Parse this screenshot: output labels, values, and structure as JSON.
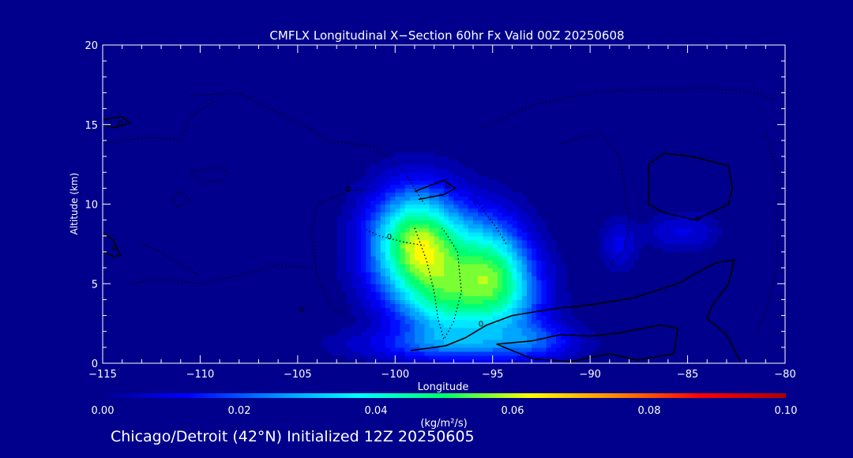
{
  "chart_data": {
    "type": "heatmap",
    "title": "CMFLX Longitudinal X−Section 60hr  Fx Valid 00Z 20250608",
    "xlabel": "Longitude",
    "ylabel": "Altitude (km)",
    "xlim": [
      -115,
      -80
    ],
    "ylim": [
      0,
      20
    ],
    "x_ticks": [
      -115,
      -110,
      -105,
      -100,
      -95,
      -90,
      -85,
      -80
    ],
    "x_tick_labels": [
      "−115",
      "−110",
      "−105",
      "−100",
      "−95",
      "−90",
      "−85",
      "−80"
    ],
    "y_ticks": [
      0,
      5,
      10,
      15,
      20
    ],
    "y_tick_labels": [
      "0",
      "5",
      "10",
      "15",
      "20"
    ],
    "grid": false,
    "colorbar": {
      "min": 0.0,
      "max": 0.1,
      "ticks": [
        0.0,
        0.02,
        0.04,
        0.06,
        0.08,
        0.1
      ],
      "tick_labels": [
        "0.00",
        "0.02",
        "0.04",
        "0.06",
        "0.08",
        "0.10"
      ],
      "unit_label": "(kg/m²/s)",
      "colors": [
        "#00008c",
        "#0000ff",
        "#0088ff",
        "#00ffff",
        "#00ff66",
        "#ffff00",
        "#ff8800",
        "#ff0000",
        "#aa0000"
      ]
    },
    "flux_cells": [
      {
        "lon": -99,
        "alt": 8.0,
        "value": 0.04,
        "sx": 1.6,
        "sy": 2.2
      },
      {
        "lon": -98,
        "alt": 6.0,
        "value": 0.03,
        "sx": 2.0,
        "sy": 2.4
      },
      {
        "lon": -97.2,
        "alt": 3.5,
        "value": 0.022,
        "sx": 1.6,
        "sy": 1.6
      },
      {
        "lon": -95,
        "alt": 6.0,
        "value": 0.032,
        "sx": 1.3,
        "sy": 2.2
      },
      {
        "lon": -94,
        "alt": 4.0,
        "value": 0.018,
        "sx": 1.4,
        "sy": 2.0
      },
      {
        "lon": -97,
        "alt": 1.2,
        "value": 0.016,
        "sx": 3.5,
        "sy": 0.7
      },
      {
        "lon": -92.5,
        "alt": 1.5,
        "value": 0.01,
        "sx": 1.3,
        "sy": 0.8
      },
      {
        "lon": -88.5,
        "alt": 7.5,
        "value": 0.01,
        "sx": 0.6,
        "sy": 1.1
      },
      {
        "lon": -86,
        "alt": 8.3,
        "value": 0.007,
        "sx": 0.8,
        "sy": 0.8
      },
      {
        "lon": -84.5,
        "alt": 8.3,
        "value": 0.007,
        "sx": 0.8,
        "sy": 0.8
      }
    ],
    "contours": [
      {
        "label": "0",
        "style": "solid",
        "lon": [
          -115,
          -114.0,
          -113.6,
          -114.4,
          -115
        ],
        "alt": [
          15.3,
          15.5,
          15.1,
          14.8,
          15.0
        ]
      },
      {
        "label": "0",
        "style": "solid",
        "lon": [
          -115,
          -114.5,
          -114.1,
          -114.4,
          -115
        ],
        "alt": [
          8.2,
          7.8,
          6.8,
          6.7,
          7.0
        ]
      },
      {
        "label": "0",
        "style": "solid",
        "lon": [
          -99.0,
          -97.5,
          -96.9,
          -97.5,
          -98.8
        ],
        "alt": [
          10.8,
          11.5,
          11.0,
          10.6,
          10.3
        ]
      },
      {
        "label": "0",
        "style": "solid",
        "lon": [
          -86.2,
          -84.8,
          -83.8,
          -82.9,
          -82.7,
          -82.9,
          -84.6,
          -86.3,
          -87.0,
          -87.0,
          -86.2
        ],
        "alt": [
          13.2,
          13.0,
          12.7,
          12.4,
          11.0,
          10.0,
          9.0,
          9.5,
          10.0,
          12.5,
          13.2
        ]
      },
      {
        "label": "0",
        "style": "solid",
        "lon": [
          -99.2,
          -97.4,
          -96.4,
          -95.3,
          -94.0,
          -92.0,
          -89.8,
          -87.8,
          -85.5,
          -83.6,
          -82.6,
          -82.9,
          -83.8,
          -84.0,
          -83.0,
          -82.3
        ],
        "alt": [
          0.8,
          1.1,
          1.6,
          2.4,
          3.0,
          3.4,
          3.7,
          4.1,
          5.0,
          6.3,
          6.5,
          5.0,
          3.5,
          2.8,
          1.8,
          0.1
        ]
      },
      {
        "label": "",
        "style": "solid",
        "lon": [
          -94.8,
          -93.0,
          -91.5,
          -90.0,
          -88.5,
          -86.4,
          -85.5,
          -85.7,
          -87.6,
          -89.0,
          -91.0,
          -93.0,
          -94.8
        ],
        "alt": [
          1.2,
          1.4,
          1.8,
          1.7,
          1.9,
          2.4,
          2.2,
          0.6,
          0.2,
          0.6,
          0.1,
          0.3,
          1.2
        ]
      },
      {
        "label": "0",
        "style": "dotted",
        "lon": [
          -99.0,
          -98.4,
          -98.0,
          -97.8,
          -97.5,
          -97.0,
          -96.6,
          -96.8,
          -97.3,
          -97.6
        ],
        "alt": [
          8.5,
          6.5,
          4.5,
          2.8,
          1.5,
          2.6,
          4.5,
          7.0,
          8.0,
          8.5
        ]
      },
      {
        "label": "0",
        "style": "dotted",
        "lon": [
          -101.0,
          -102.5,
          -104.0,
          -104.3,
          -104.0,
          -103.2,
          -102.5
        ],
        "alt": [
          11.0,
          10.8,
          10.0,
          8.0,
          5.5,
          3.4,
          3.1
        ]
      },
      {
        "label": "",
        "style": "dotted",
        "lon": [
          -110.5,
          -108.0,
          -104.0,
          -103.5,
          -101.0,
          -99.5,
          -98.5
        ],
        "alt": [
          16.8,
          17.0,
          14.5,
          14.0,
          13.6,
          12.0,
          10.0
        ]
      },
      {
        "label": "",
        "style": "dotted",
        "lon": [
          -95.5,
          -93.0,
          -90.0,
          -87.0,
          -84.0,
          -81.5,
          -80.5
        ],
        "alt": [
          14.8,
          16.2,
          17.0,
          17.2,
          17.3,
          17.0,
          16.5
        ]
      },
      {
        "label": "",
        "style": "dotted",
        "lon": [
          -91.5,
          -89.5,
          -88.5,
          -88.2,
          -88.0,
          -88.3,
          -89.0
        ],
        "alt": [
          13.8,
          14.5,
          13.0,
          11.0,
          8.5,
          7.0,
          6.2
        ]
      },
      {
        "label": "",
        "style": "dotted",
        "lon": [
          -81.0,
          -80.4,
          -80.4,
          -81.0,
          -81.4
        ],
        "alt": [
          14.5,
          12.0,
          6.0,
          3.2,
          2.0
        ]
      },
      {
        "label": "",
        "style": "dotted",
        "lon": [
          -115,
          -114.0,
          -112.5,
          -111.0,
          -110.5,
          -109.2
        ],
        "alt": [
          13.8,
          14.0,
          14.2,
          14.0,
          15.5,
          16.5
        ]
      },
      {
        "label": "",
        "style": "dotted",
        "lon": [
          -110.5,
          -109.2,
          -108.5,
          -109.0,
          -110.0,
          -110.5
        ],
        "alt": [
          12.0,
          12.4,
          12.0,
          11.4,
          11.5,
          12.0
        ]
      },
      {
        "label": "",
        "style": "dotted",
        "lon": [
          -111.0,
          -110.5,
          -111.2,
          -111.5,
          -111.0
        ],
        "alt": [
          10.8,
          10.2,
          9.8,
          10.3,
          10.8
        ]
      },
      {
        "label": "",
        "style": "dotted",
        "lon": [
          -113.5,
          -112.0,
          -110.0,
          -108.0,
          -106.0,
          -104.2
        ],
        "alt": [
          5.0,
          5.3,
          5.0,
          5.5,
          6.2,
          6.0
        ]
      },
      {
        "label": "",
        "style": "dotted",
        "lon": [
          -113.0,
          -112.0,
          -111.0,
          -110.0
        ],
        "alt": [
          7.5,
          7.0,
          6.2,
          5.5
        ]
      },
      {
        "label": "0",
        "style": "dotted",
        "lon": [
          -101.5,
          -100.8,
          -99.5,
          -98.5
        ],
        "alt": [
          8.4,
          8.0,
          7.6,
          7.4
        ]
      },
      {
        "label": "",
        "style": "dotted",
        "lon": [
          -96.0,
          -95.4,
          -94.8,
          -94.3
        ],
        "alt": [
          10.5,
          9.5,
          8.5,
          7.5
        ]
      }
    ],
    "inline_labels": [
      {
        "text": "0",
        "lon": -114.1,
        "alt": 15.1
      },
      {
        "text": "0",
        "lon": -114.4,
        "alt": 7.3
      },
      {
        "text": "0",
        "lon": -102.4,
        "alt": 11.0
      },
      {
        "text": "0",
        "lon": -104.8,
        "alt": 3.4
      },
      {
        "text": "0",
        "lon": -97.3,
        "alt": 11.2
      },
      {
        "text": "0",
        "lon": -95.6,
        "alt": 2.5
      },
      {
        "text": "0",
        "lon": -100.3,
        "alt": 8.0
      },
      {
        "text": "0",
        "lon": -84.5,
        "alt": 9.1
      }
    ]
  },
  "footer": "Chicago/Detroit (42°N) Initialized 12Z 20250605"
}
